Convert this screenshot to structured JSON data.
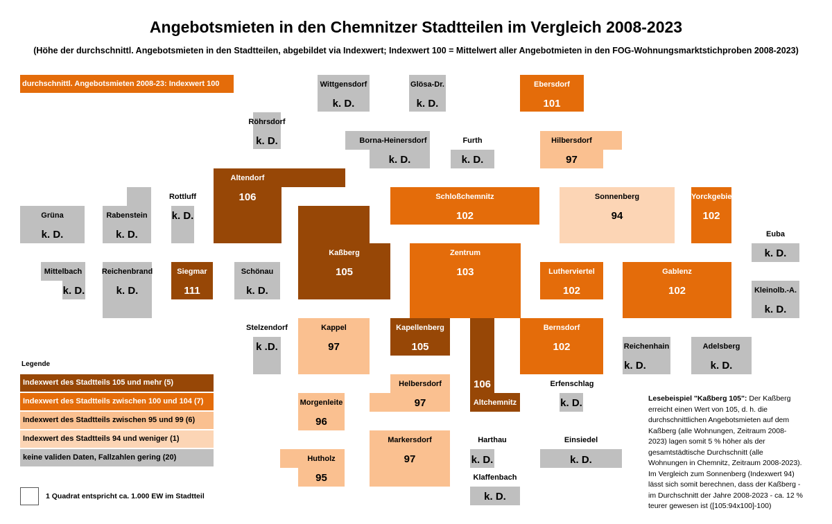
{
  "title": "Angebotsmieten in den Chemnitzer Stadtteilen im Vergleich 2008-2023",
  "subtitle": "(Höhe der durchschnittl. Angebotsmieten in den Stadtteilen, abgebildet via Indexwert; Indexwert 100 = Mittelwert aller Angebotmieten in den FOG-Wohnungsmarktstichproben 2008-2023)",
  "reference_label": "durchschnittl. Angebotsmieten 2008-23: Indexwert 100",
  "colors": {
    "class_105_plus": "#974706",
    "class_100_104": "#E46C0A",
    "class_95_99": "#FAC090",
    "class_94_below": "#FCD5B5",
    "no_data": "#BFBFBF"
  },
  "districts": {
    "wittgensdorf": {
      "name": "Wittgensdorf",
      "value": "k. D."
    },
    "glosa": {
      "name": "Glösa-Dr.",
      "value": "k. D."
    },
    "ebersdorf": {
      "name": "Ebersdorf",
      "value": "101"
    },
    "rohrsdorf": {
      "name": "Röhrsdorf",
      "value": "k. D."
    },
    "borna": {
      "name": "Borna-Heinersdorf",
      "value": "k. D."
    },
    "furth": {
      "name": "Furth",
      "value": "k. D."
    },
    "hilbersdorf": {
      "name": "Hilbersdorf",
      "value": "97"
    },
    "altendorf": {
      "name": "Altendorf",
      "value": "106"
    },
    "rottluff": {
      "name": "Rottluff",
      "value": "k. D."
    },
    "schlosschemnitz": {
      "name": "Schloßchemnitz",
      "value": "102"
    },
    "sonnenberg": {
      "name": "Sonnenberg",
      "value": "94"
    },
    "yorckgebiet": {
      "name": "Yorckgebiet",
      "value": "102"
    },
    "gruna": {
      "name": "Grüna",
      "value": "k. D."
    },
    "rabenstein": {
      "name": "Rabenstein",
      "value": "k. D."
    },
    "euba": {
      "name": "Euba",
      "value": "k. D."
    },
    "kassberg": {
      "name": "Kaßberg",
      "value": "105"
    },
    "zentrum": {
      "name": "Zentrum",
      "value": "103"
    },
    "mittelbach": {
      "name": "Mittelbach",
      "value": "k. D."
    },
    "reichenbrand": {
      "name": "Reichenbrand",
      "value": "k. D."
    },
    "siegmar": {
      "name": "Siegmar",
      "value": "111"
    },
    "schonau": {
      "name": "Schönau",
      "value": "k. D."
    },
    "lutherviertel": {
      "name": "Lutherviertel",
      "value": "102"
    },
    "gablenz": {
      "name": "Gablenz",
      "value": "102"
    },
    "kleinolbersdorf": {
      "name": "Kleinolb.-A.",
      "value": "k. D."
    },
    "stelzendorf": {
      "name": "Stelzendorf",
      "value": "k .D."
    },
    "kappel": {
      "name": "Kappel",
      "value": "97"
    },
    "kapellenberg": {
      "name": "Kapellenberg",
      "value": "105"
    },
    "altchemnitz": {
      "name": "Altchemnitz",
      "value": "106"
    },
    "bernsdorf": {
      "name": "Bernsdorf",
      "value": "102"
    },
    "reichenhain": {
      "name": "Reichenhain",
      "value": "k. D."
    },
    "adelsberg": {
      "name": "Adelsberg",
      "value": "k. D."
    },
    "helbersdorf": {
      "name": "Helbersdorf",
      "value": "97"
    },
    "erfenschlag": {
      "name": "Erfenschlag",
      "value": "k. D."
    },
    "morgenleite": {
      "name": "Morgenleite",
      "value": "96"
    },
    "markersdorf": {
      "name": "Markersdorf",
      "value": "97"
    },
    "harthau": {
      "name": "Harthau",
      "value": "k. D."
    },
    "einsiedel": {
      "name": "Einsiedel",
      "value": "k. D."
    },
    "hutholz": {
      "name": "Hutholz",
      "value": "95"
    },
    "klaffenbach": {
      "name": "Klaffenbach",
      "value": "k. D."
    }
  },
  "legend": {
    "title": "Legende",
    "items": [
      "Indexwert des Stadtteils 105 und mehr (5)",
      "Indexwert des Stadtteils zwischen 100 und 104 (7)",
      "Indexwert des Stadtteils zwischen 95 und 99  (6)",
      "Indexwert des Stadtteils 94 und weniger (1)",
      "keine validen Daten, Fallzahlen gering (20)"
    ],
    "square_note": "1 Quadrat entspricht ca. 1.000 EW im Stadtteil"
  },
  "reading_example": {
    "heading": "Lesebeispiel \"Kaßberg 105\":",
    "text": " Der Kaßberg erreicht einen Wert von 105, d. h. die durchschnittlichen Angebotsmieten auf dem Kaßberg (alle Wohnungen, Zeitraum 2008-2023) lagen somit 5 % höher als der gesamtstädtische Durchschnitt (alle Wohnungen in Chemnitz, Zeitraum 2008-2023). Im Vergleich zum Sonnenberg (Indexwert 94) lässt sich somit berechnen, dass der Kaßberg - im Durchschnitt der Jahre 2008-2023 - ca. 12 % teurer gewesen ist ([105:94x100]-100)"
  }
}
